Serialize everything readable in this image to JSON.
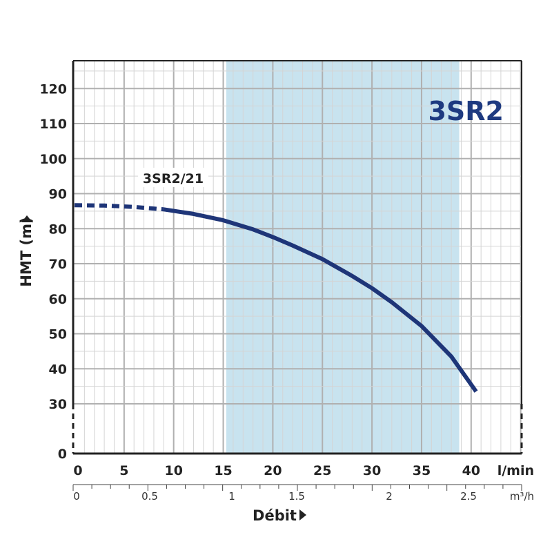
{
  "chart_data": {
    "type": "line",
    "title": "3SR2",
    "ylabel": "HMT  (m)",
    "xlabel": "Débit",
    "x_unit_primary": "l/min",
    "x_unit_secondary": "m³/h",
    "ylim": [
      0,
      128
    ],
    "y_broken_below": 30,
    "xlim": [
      0,
      45
    ],
    "y_ticks": [
      0,
      30,
      40,
      50,
      60,
      70,
      80,
      90,
      100,
      110,
      120
    ],
    "x_ticks": [
      0,
      5,
      10,
      15,
      20,
      25,
      30,
      35,
      40
    ],
    "x_ticks_secondary": [
      "0",
      "0.5",
      "1",
      "1.5",
      "2",
      "2.5"
    ],
    "grid": true,
    "recommended_range_lmin": [
      15.3,
      38.8
    ],
    "colors": {
      "curve": "#1e3578",
      "band": "#c8e3ef",
      "title": "#1e3a80",
      "grid": "#bdbdbd"
    },
    "series": [
      {
        "name": "3SR2/21",
        "dashed_x": [
          0,
          3,
          6,
          9
        ],
        "dashed_y": [
          86.7,
          86.6,
          86.2,
          85.5
        ],
        "x": [
          9,
          12,
          15,
          18,
          20,
          22,
          25,
          28,
          30,
          32,
          35,
          38,
          40.5
        ],
        "y": [
          85.5,
          84.2,
          82.4,
          79.8,
          77.6,
          75.2,
          71.3,
          66.5,
          63.0,
          59.0,
          52.2,
          43.5,
          33.5
        ]
      }
    ]
  }
}
